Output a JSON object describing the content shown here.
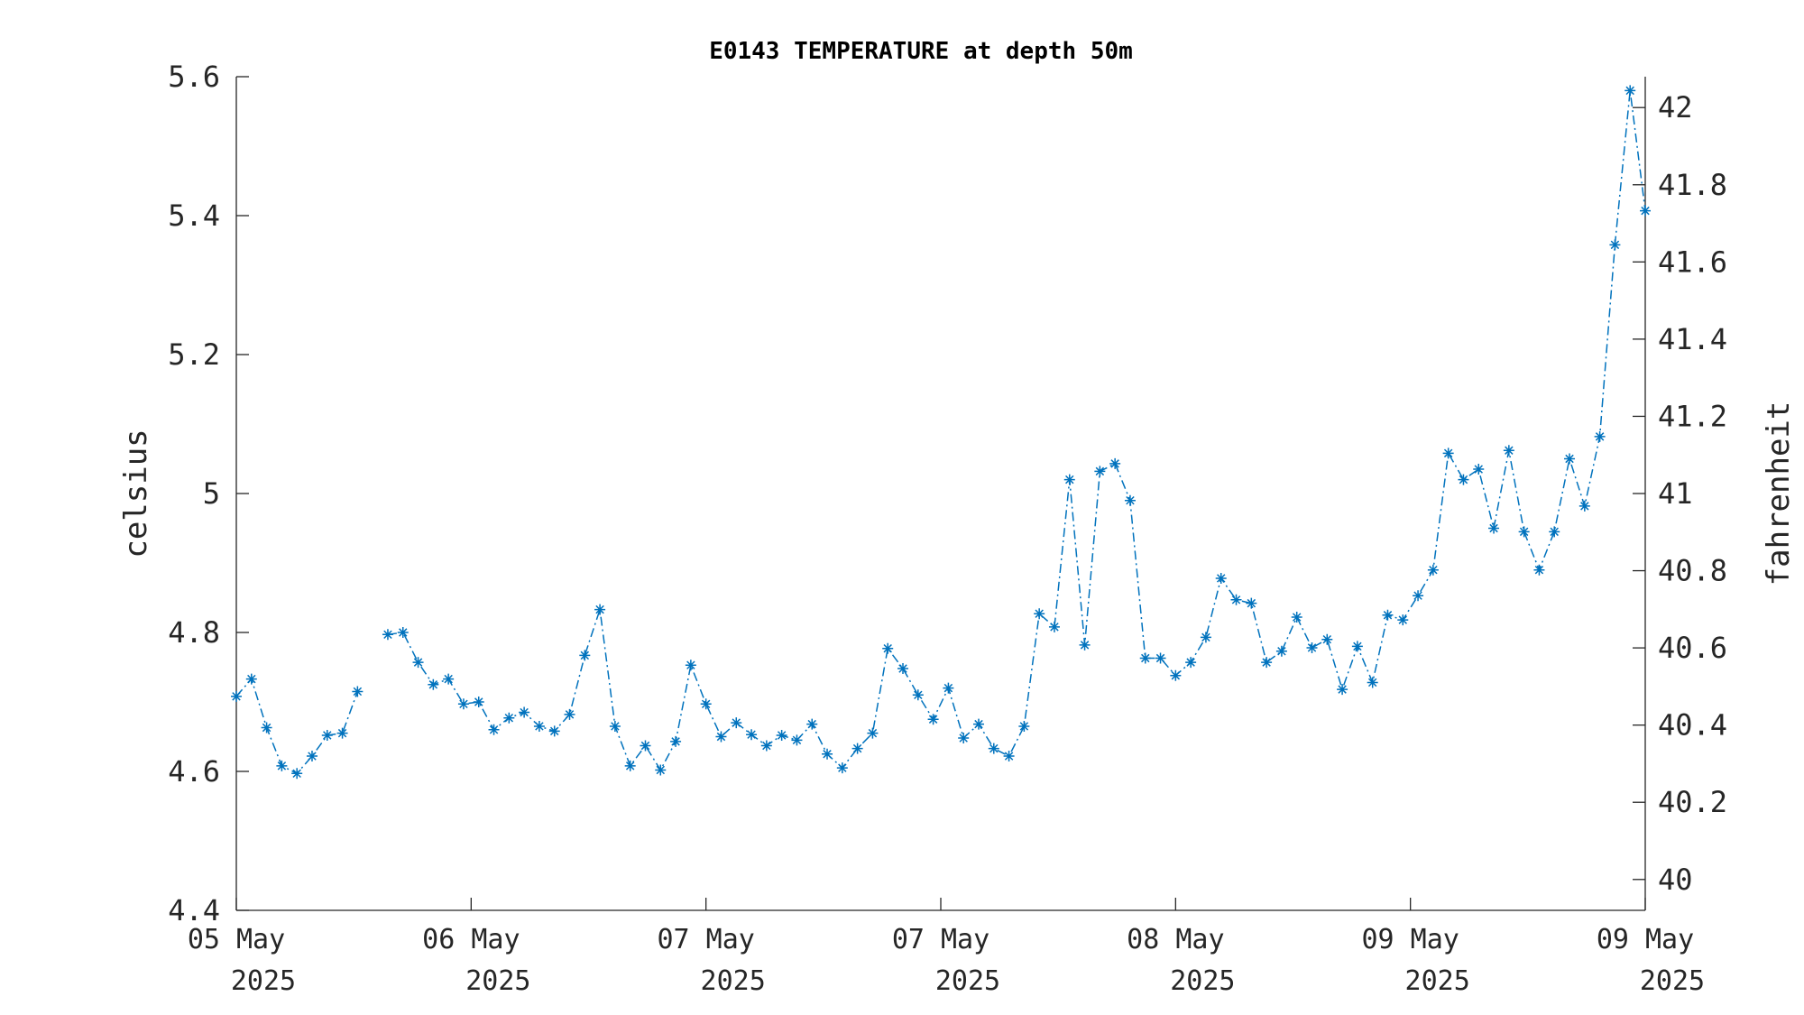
{
  "chart_data": {
    "type": "line",
    "title": "E0143 TEMPERATURE at depth 50m",
    "ylabel": "celsius",
    "y2label": "fahrenheit",
    "ylim": [
      4.4,
      5.6
    ],
    "y2lim": [
      39.92,
      42.08
    ],
    "yticks": [
      "4.4",
      "4.6",
      "4.8",
      "5",
      "5.2",
      "5.4",
      "5.6"
    ],
    "y2ticks": [
      "40",
      "40.2",
      "40.4",
      "40.6",
      "40.8",
      "41",
      "41.2",
      "41.4",
      "41.6",
      "41.8",
      "42"
    ],
    "xticks": [
      {
        "line1": "05 May",
        "line2": "2025"
      },
      {
        "line1": "06 May",
        "line2": "2025"
      },
      {
        "line1": "07 May",
        "line2": "2025"
      },
      {
        "line1": "07 May",
        "line2": "2025"
      },
      {
        "line1": "08 May",
        "line2": "2025"
      },
      {
        "line1": "09 May",
        "line2": "2025"
      },
      {
        "line1": "09 May",
        "line2": "2025"
      }
    ],
    "marker": "asterisk",
    "line_style": "dash-dot",
    "color": "#0072BD",
    "grid": false,
    "segments": [
      [
        4.708,
        4.733,
        4.663,
        4.608,
        4.597,
        4.622,
        4.652,
        4.655,
        4.715
      ],
      [
        4.797,
        4.8,
        4.757,
        4.725,
        4.733,
        4.697,
        4.7,
        4.66,
        4.677,
        4.685,
        4.665,
        4.658,
        4.682,
        4.767,
        4.833,
        4.665,
        4.608,
        4.637,
        4.602,
        4.643,
        4.753,
        4.697,
        4.65,
        4.67,
        4.653,
        4.637,
        4.652,
        4.645,
        4.668,
        4.625,
        4.605,
        4.633,
        4.655,
        4.777,
        4.748,
        4.71,
        4.675,
        4.72,
        4.648,
        4.668,
        4.633,
        4.622,
        4.665,
        4.827,
        4.808,
        5.02,
        4.782,
        5.032,
        5.043,
        4.99,
        4.763,
        4.763,
        4.738,
        4.757,
        4.793,
        4.878,
        4.847,
        4.842,
        4.757,
        4.773,
        4.822,
        4.778,
        4.79,
        4.718,
        4.78,
        4.728,
        4.825,
        4.818,
        4.853,
        4.89,
        5.058,
        5.02,
        5.035,
        4.95,
        5.062,
        4.945,
        4.89,
        4.945,
        5.05,
        4.982,
        5.082,
        5.358,
        5.58,
        5.407
      ]
    ]
  }
}
